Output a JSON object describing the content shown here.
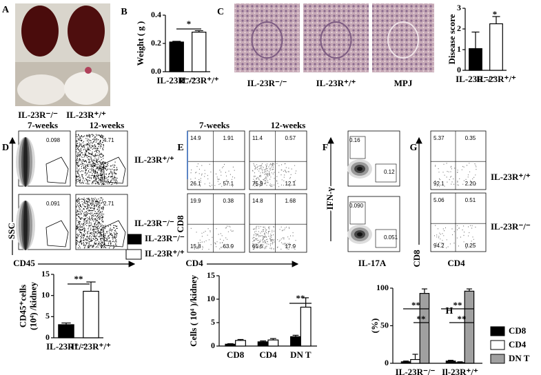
{
  "panel_labels": [
    "A",
    "B",
    "C",
    "D",
    "E",
    "F",
    "G",
    "H"
  ],
  "panel_a": {
    "labels": [
      "IL-23R⁻/⁻",
      "IL-23R⁺/⁺"
    ]
  },
  "panel_c": {
    "labels": [
      "IL-23R⁻/⁻",
      "IL-23R⁺/⁺",
      "MPJ"
    ]
  },
  "chart_data": [
    {
      "type": "bar",
      "ylabel": [
        "Weight ( g )"
      ],
      "categories": [
        "IL-23R⁻/⁻",
        "IL-23R⁺/⁺"
      ],
      "values": [
        0.21,
        0.28
      ],
      "errors": [
        0.005,
        0.01
      ],
      "colors": [
        "#000000",
        "#ffffff"
      ],
      "ylim": [
        0,
        0.4
      ],
      "yticks": [
        {
          "value": 0,
          "label": "0.0"
        },
        0.2,
        0.4
      ],
      "annotations": [
        "*"
      ]
    },
    {
      "type": "bar",
      "ylabel": [
        "Disease  score"
      ],
      "categories": [
        "IL-23R⁻/⁻",
        "IL-23R⁺/⁺"
      ],
      "values": [
        1.05,
        2.25
      ],
      "errors": [
        0.8,
        0.35
      ],
      "colors": [
        "#000000",
        "#ffffff"
      ],
      "ylim": [
        0,
        3
      ],
      "yticks": [
        0,
        1,
        2,
        3
      ],
      "annotations": [
        "*"
      ]
    },
    {
      "type": "bar",
      "ylabel": [
        "CD45⁺cells",
        "(10⁴) /kidney"
      ],
      "categories": [
        "IL-23R⁻/⁻",
        "IL-23R⁺/⁺"
      ],
      "values": [
        3.1,
        11
      ],
      "errors": [
        0.4,
        2.2
      ],
      "colors": [
        "#000000",
        "#ffffff"
      ],
      "ylim": [
        0,
        15
      ],
      "yticks": [
        0,
        5,
        10,
        15
      ],
      "annotations": [
        "**"
      ]
    },
    {
      "type": "bar",
      "ylabel": [
        "Cells ( 10⁴ )/kidney"
      ],
      "categories": [
        "CD8",
        "CD4",
        "DN T"
      ],
      "series": [
        {
          "color": "#000000",
          "values": [
            0.4,
            0.9,
            2.0
          ],
          "errors": [
            0.1,
            0.2,
            0.3
          ]
        },
        {
          "color": "#ffffff",
          "values": [
            1.2,
            1.3,
            8.3
          ],
          "errors": [
            0.2,
            0.3,
            2.0
          ]
        }
      ],
      "ylim": [
        0,
        15
      ],
      "yticks": [
        0,
        5,
        10,
        15
      ],
      "annotations": [
        "**"
      ]
    },
    {
      "type": "bar",
      "ylabel": [
        "(%)"
      ],
      "categories": [
        "IL-23R⁻/⁻",
        "Il-23R⁺/⁺"
      ],
      "series": [
        {
          "name": "CD8",
          "color": "#000000",
          "values": [
            2,
            3
          ],
          "errors": [
            1,
            1
          ]
        },
        {
          "name": "CD4",
          "color": "#ffffff",
          "values": [
            5,
            1
          ],
          "errors": [
            7,
            1
          ]
        },
        {
          "name": "DN T",
          "color": "#a0a0a0",
          "values": [
            93,
            96
          ],
          "errors": [
            6,
            3
          ]
        }
      ],
      "ylim": [
        0,
        100
      ],
      "yticks": [
        0,
        50,
        100
      ],
      "annotations": [
        "**",
        "**",
        "**",
        "**"
      ]
    }
  ],
  "legend_de": {
    "items": [
      {
        "name": "IL-23R⁻/⁻",
        "color": "#000000"
      },
      {
        "name": "IL-23R⁺/⁺",
        "color": "#ffffff"
      }
    ]
  },
  "flow_d": {
    "headers": [
      "7-weeks",
      "12-weeks"
    ],
    "rows": [
      "IL-23R⁺/⁺",
      "IL-23R⁻/⁻"
    ],
    "x_label": "CD45",
    "y_label": "SSC",
    "gates": [
      [
        "0.098",
        "4.71"
      ],
      [
        "0.091",
        "2.71"
      ]
    ]
  },
  "flow_e": {
    "headers": [
      "7-weeks",
      "12-weeks"
    ],
    "x_label": "CD4",
    "y_label": "CD8",
    "quadrants": [
      [
        [
          "14.9",
          "1.91",
          "26.1",
          "57.1"
        ],
        [
          "11.4",
          "0.57",
          "75.9",
          "12.1"
        ]
      ],
      [
        [
          "19.9",
          "0.38",
          "15.8",
          "63.9"
        ],
        [
          "14.8",
          "1.68",
          "65.6",
          "17.9"
        ]
      ]
    ]
  },
  "flow_f": {
    "x_label": "IL-17A",
    "y_label": "IFN-γ",
    "gates": [
      [
        "0.16",
        "0.12"
      ],
      [
        "0.090",
        "0.051"
      ]
    ]
  },
  "flow_g": {
    "rows": [
      "IL-23R⁺/⁺",
      "IL-23R⁻/⁻"
    ],
    "x_label": "CD4",
    "y_label": "CD8",
    "quadrants": [
      [
        "5.37",
        "0.35",
        "92.1",
        "2.20"
      ],
      [
        "5.06",
        "0.51",
        "94.2",
        "0.25"
      ]
    ]
  }
}
